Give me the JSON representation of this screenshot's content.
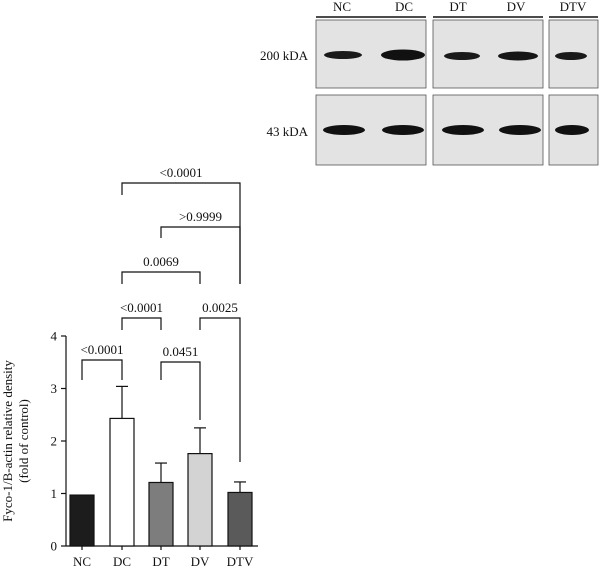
{
  "blot": {
    "lanes": [
      "NC",
      "DC",
      "DT",
      "DV",
      "DTV"
    ],
    "row_labels": [
      "200 kDA",
      "43 kDA"
    ]
  },
  "chart_data": {
    "type": "bar",
    "categories": [
      "NC",
      "DC",
      "DT",
      "DV",
      "DTV"
    ],
    "values": [
      0.97,
      2.43,
      1.21,
      1.76,
      1.02
    ],
    "errors": [
      0,
      0.61,
      0.37,
      0.49,
      0.2
    ],
    "bar_colors": [
      "#1c1c1c",
      "#ffffff",
      "#7d7d7d",
      "#d3d3d3",
      "#5a5a5a"
    ],
    "ylabel_line1": "Fyco-1/B-actin relative density",
    "ylabel_line2": "(fold of control)",
    "ylim": [
      0,
      4
    ],
    "yticks": [
      "0",
      "1",
      "2",
      "3",
      "4"
    ],
    "comparisons": [
      {
        "from": "NC",
        "to": "DC",
        "label": "<0.0001"
      },
      {
        "from": "DT",
        "to": "DV",
        "label": "0.0451"
      },
      {
        "from": "DC",
        "to": "DT",
        "label": "<0.0001"
      },
      {
        "from": "DV",
        "to": "DTV",
        "label": "0.0025"
      },
      {
        "from": "DC",
        "to": "DV",
        "label": "0.0069"
      },
      {
        "from": "DT",
        "to": "DTV",
        "label": ">0.9999"
      },
      {
        "from": "DC",
        "to": "DTV",
        "label": "<0.0001"
      }
    ]
  }
}
